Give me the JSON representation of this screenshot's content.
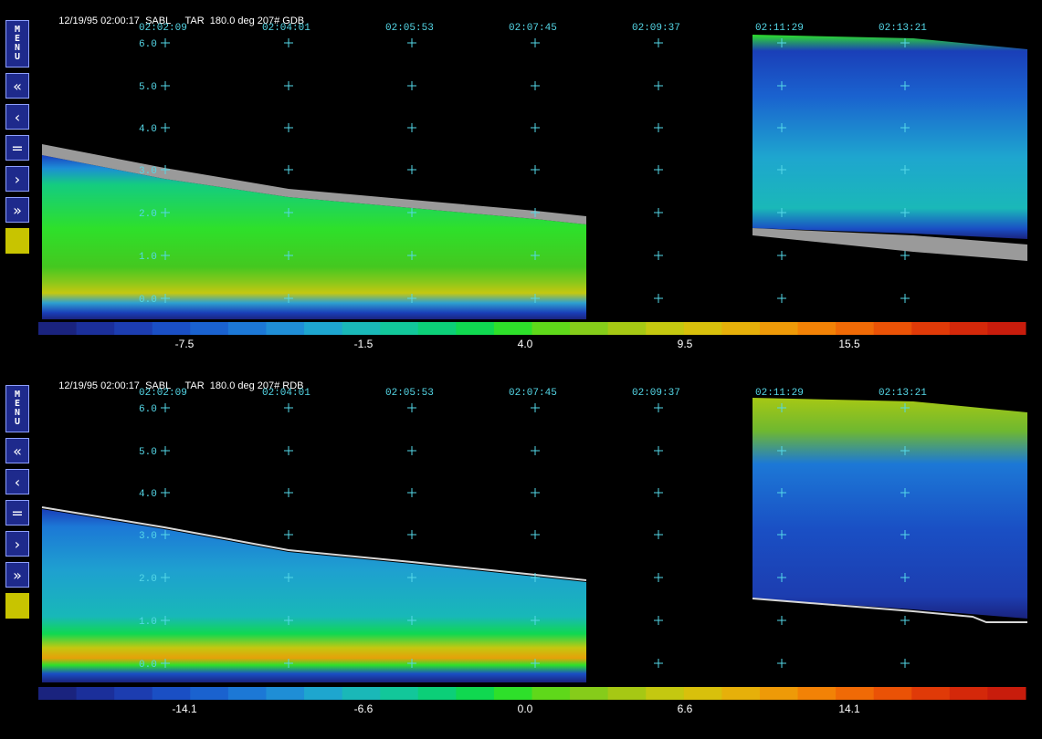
{
  "panels": [
    {
      "header": {
        "date": "12/19/95 02:00:17",
        "site": "SABL",
        "info": "TAR  180.0 deg 207# GDB"
      },
      "time_labels": [
        "02:02:09",
        "02:04:01",
        "02:05:53",
        "02:07:45",
        "02:09:37",
        "02:11:29",
        "02:13:21"
      ],
      "height_labels": [
        "6.0",
        "5.0",
        "4.0",
        "3.0",
        "2.0",
        "1.0",
        "0.0"
      ],
      "colorbar_labels": [
        "-7.5",
        "-1.5",
        "4.0",
        "9.5",
        "15.5"
      ]
    },
    {
      "header": {
        "date": "12/19/95 02:00:17",
        "site": "SABL",
        "info": "TAR  180.0 deg 207# RDB"
      },
      "time_labels": [
        "02:02:09",
        "02:04:01",
        "02:05:53",
        "02:07:45",
        "02:09:37",
        "02:11:29",
        "02:13:21"
      ],
      "height_labels": [
        "6.0",
        "5.0",
        "4.0",
        "3.0",
        "2.0",
        "1.0",
        "0.0"
      ],
      "colorbar_labels": [
        "-14.1",
        "-6.6",
        "0.0",
        "6.6",
        "14.1"
      ]
    }
  ],
  "toolbar": {
    "menu_label": "MENU",
    "first_label": "«",
    "prev_label": "‹",
    "equal_label": "=",
    "next_label": "›",
    "last_label": "»"
  },
  "colors": {
    "axis_cyan": "#55d8e8",
    "button_bg": "#1e2a8c",
    "swatch": "#c8c400"
  }
}
